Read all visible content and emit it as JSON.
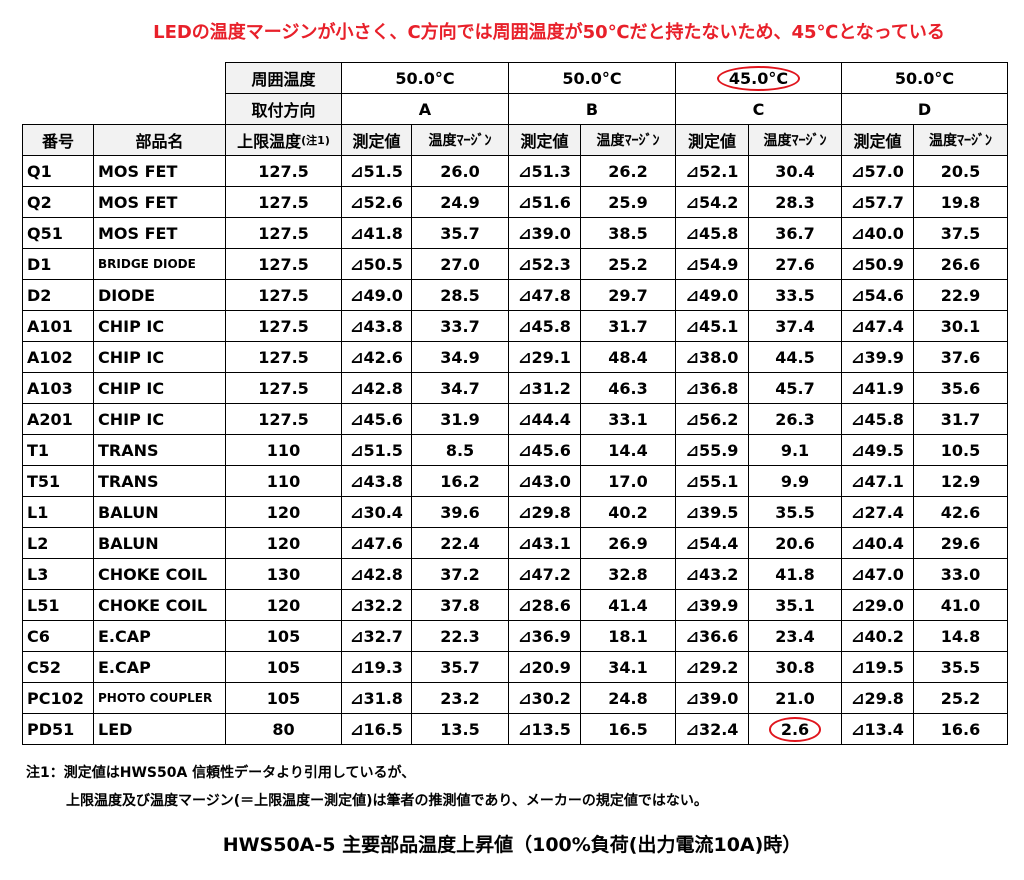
{
  "header": {
    "note": "LEDの温度マージンが小さく、C方向では周囲温度が50℃だと持たないため、45℃となっている"
  },
  "table": {
    "ambient_label": "周囲温度",
    "ambient": [
      "50.0°C",
      "50.0°C",
      "45.0°C",
      "50.0°C"
    ],
    "direction_label": "取付方向",
    "direction": [
      "A",
      "B",
      "C",
      "D"
    ],
    "columns": [
      "番号",
      "部品名",
      "上限温度",
      "測定値",
      "温度ﾏｰｼﾞﾝ",
      "測定値",
      "温度ﾏｰｼﾞﾝ",
      "測定値",
      "温度ﾏｰｼﾞﾝ",
      "測定値",
      "温度ﾏｰｼﾞﾝ"
    ],
    "limit_note": "(注1)",
    "rows": [
      [
        "Q1",
        "MOS FET",
        "127.5",
        "⊿51.5",
        "26.0",
        "⊿51.3",
        "26.2",
        "⊿52.1",
        "30.4",
        "⊿57.0",
        "20.5"
      ],
      [
        "Q2",
        "MOS FET",
        "127.5",
        "⊿52.6",
        "24.9",
        "⊿51.6",
        "25.9",
        "⊿54.2",
        "28.3",
        "⊿57.7",
        "19.8"
      ],
      [
        "Q51",
        "MOS FET",
        "127.5",
        "⊿41.8",
        "35.7",
        "⊿39.0",
        "38.5",
        "⊿45.8",
        "36.7",
        "⊿40.0",
        "37.5"
      ],
      [
        "D1",
        "BRIDGE DIODE",
        "127.5",
        "⊿50.5",
        "27.0",
        "⊿52.3",
        "25.2",
        "⊿54.9",
        "27.6",
        "⊿50.9",
        "26.6"
      ],
      [
        "D2",
        "DIODE",
        "127.5",
        "⊿49.0",
        "28.5",
        "⊿47.8",
        "29.7",
        "⊿49.0",
        "33.5",
        "⊿54.6",
        "22.9"
      ],
      [
        "A101",
        "CHIP IC",
        "127.5",
        "⊿43.8",
        "33.7",
        "⊿45.8",
        "31.7",
        "⊿45.1",
        "37.4",
        "⊿47.4",
        "30.1"
      ],
      [
        "A102",
        "CHIP IC",
        "127.5",
        "⊿42.6",
        "34.9",
        "⊿29.1",
        "48.4",
        "⊿38.0",
        "44.5",
        "⊿39.9",
        "37.6"
      ],
      [
        "A103",
        "CHIP IC",
        "127.5",
        "⊿42.8",
        "34.7",
        "⊿31.2",
        "46.3",
        "⊿36.8",
        "45.7",
        "⊿41.9",
        "35.6"
      ],
      [
        "A201",
        "CHIP IC",
        "127.5",
        "⊿45.6",
        "31.9",
        "⊿44.4",
        "33.1",
        "⊿56.2",
        "26.3",
        "⊿45.8",
        "31.7"
      ],
      [
        "T1",
        "TRANS",
        "110",
        "⊿51.5",
        "8.5",
        "⊿45.6",
        "14.4",
        "⊿55.9",
        "9.1",
        "⊿49.5",
        "10.5"
      ],
      [
        "T51",
        "TRANS",
        "110",
        "⊿43.8",
        "16.2",
        "⊿43.0",
        "17.0",
        "⊿55.1",
        "9.9",
        "⊿47.1",
        "12.9"
      ],
      [
        "L1",
        "BALUN",
        "120",
        "⊿30.4",
        "39.6",
        "⊿29.8",
        "40.2",
        "⊿39.5",
        "35.5",
        "⊿27.4",
        "42.6"
      ],
      [
        "L2",
        "BALUN",
        "120",
        "⊿47.6",
        "22.4",
        "⊿43.1",
        "26.9",
        "⊿54.4",
        "20.6",
        "⊿40.4",
        "29.6"
      ],
      [
        "L3",
        "CHOKE COIL",
        "130",
        "⊿42.8",
        "37.2",
        "⊿47.2",
        "32.8",
        "⊿43.2",
        "41.8",
        "⊿47.0",
        "33.0"
      ],
      [
        "L51",
        "CHOKE COIL",
        "120",
        "⊿32.2",
        "37.8",
        "⊿28.6",
        "41.4",
        "⊿39.9",
        "35.1",
        "⊿29.0",
        "41.0"
      ],
      [
        "C6",
        "E.CAP",
        "105",
        "⊿32.7",
        "22.3",
        "⊿36.9",
        "18.1",
        "⊿36.6",
        "23.4",
        "⊿40.2",
        "14.8"
      ],
      [
        "C52",
        "E.CAP",
        "105",
        "⊿19.3",
        "35.7",
        "⊿20.9",
        "34.1",
        "⊿29.2",
        "30.8",
        "⊿19.5",
        "35.5"
      ],
      [
        "PC102",
        "PHOTO COUPLER",
        "105",
        "⊿31.8",
        "23.2",
        "⊿30.2",
        "24.8",
        "⊿39.0",
        "21.0",
        "⊿29.8",
        "25.2"
      ],
      [
        "PD51",
        "LED",
        "80",
        "⊿16.5",
        "13.5",
        "⊿13.5",
        "16.5",
        "⊿32.4",
        "2.6",
        "⊿13.4",
        "16.6"
      ]
    ]
  },
  "footnotes": [
    "注1：測定値はHWS50A 信頼性データより引用しているが、",
    "上限温度及び温度マージン(＝上限温度ー測定値)は筆者の推測値であり、メーカーの規定値ではない。"
  ],
  "caption": "HWS50A-5 主要部品温度上昇値（100%負荷(出力電流10A)時）"
}
